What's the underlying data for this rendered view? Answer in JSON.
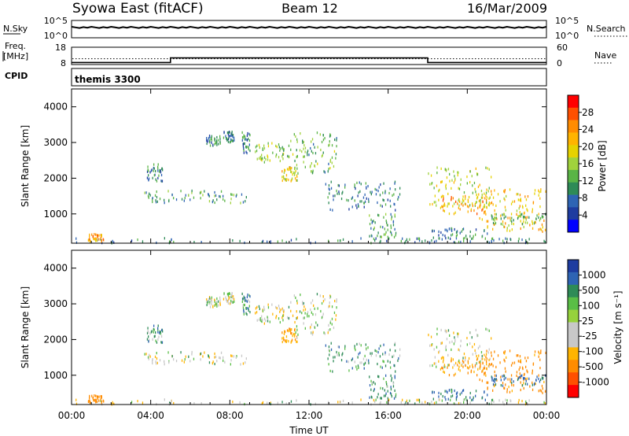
{
  "header": {
    "station": "Syowa East (fitACF)",
    "beam": "Beam 12",
    "date": "16/Mar/2009"
  },
  "noise_panel": {
    "left_label": "N.Sky",
    "right_label": "N.Search",
    "left_ticks": [
      "10^5",
      "10^0"
    ],
    "right_ticks": [
      "10^5",
      "10^0"
    ]
  },
  "freq_panel": {
    "left_label_top": "Freq.",
    "left_label_bottom": "[MHz]",
    "right_label": "Nave",
    "left_ticks": [
      "18",
      "8"
    ],
    "right_ticks": [
      "60",
      "0"
    ],
    "freq_steps": [
      {
        "t_start": 0,
        "t_end": 5.0,
        "freq_mhz": 9.2
      },
      {
        "t_start": 5.0,
        "t_end": 18.0,
        "freq_mhz": 11.8
      },
      {
        "t_start": 18.0,
        "t_end": 24.0,
        "freq_mhz": 9.2
      }
    ],
    "nave_level": 20
  },
  "cpid": {
    "label": "CPID",
    "value": "themis 3300"
  },
  "power_panel": {
    "ylabel": "Slant Range [km]",
    "y_ticks": [
      "4000",
      "3000",
      "2000",
      "1000"
    ],
    "colorbar_label": "Power [dB]",
    "colorbar_ticks": [
      "28",
      "24",
      "20",
      "16",
      "12",
      "8",
      "4"
    ],
    "colorbar_colors": [
      "#ff0000",
      "#ff5000",
      "#ff8c00",
      "#ffb400",
      "#e6d200",
      "#a0d23c",
      "#5ab446",
      "#2e8b57",
      "#2e64b4",
      "#1e3ca0",
      "#0000ff"
    ]
  },
  "velocity_panel": {
    "ylabel": "Slant Range [km]",
    "y_ticks": [
      "4000",
      "3000",
      "2000",
      "1000"
    ],
    "colorbar_label": "Velocity [m s⁻¹]",
    "colorbar_ticks": [
      "1000",
      "500",
      "100",
      "25",
      "-25",
      "-100",
      "-500",
      "-1000"
    ],
    "colorbar_colors": [
      "#1e3ca0",
      "#2e64b4",
      "#2e8b57",
      "#5abe46",
      "#96d23c",
      "#c8c8c8",
      "#c8c8c8",
      "#ffb400",
      "#ff8c00",
      "#ff5000",
      "#ff0000"
    ]
  },
  "xaxis": {
    "label": "Time UT",
    "ticks": [
      "00:00",
      "04:00",
      "08:00",
      "12:00",
      "16:00",
      "20:00",
      "00:00"
    ]
  },
  "chart_data": {
    "type": "heatmap",
    "x_unit": "hours UT",
    "x_range": [
      0,
      24
    ],
    "y_range_km": [
      180,
      4500
    ],
    "echo_regions": [
      {
        "t_start": 0.2,
        "t_end": 24.0,
        "r_start": 180,
        "r_end": 320,
        "power_db": 8,
        "velocity": 0
      },
      {
        "t_start": 0.8,
        "t_end": 1.6,
        "r_start": 220,
        "r_end": 450,
        "power_db": 22,
        "velocity": -300
      },
      {
        "t_start": 3.6,
        "t_end": 8.9,
        "r_start": 1300,
        "r_end": 1650,
        "power_db": 10,
        "velocity": 0
      },
      {
        "t_start": 3.8,
        "t_end": 4.6,
        "r_start": 1900,
        "r_end": 2400,
        "power_db": 8,
        "velocity": 60
      },
      {
        "t_start": 6.8,
        "t_end": 7.5,
        "r_start": 2900,
        "r_end": 3200,
        "power_db": 8,
        "velocity": 0
      },
      {
        "t_start": 7.6,
        "t_end": 8.2,
        "r_start": 3000,
        "r_end": 3300,
        "power_db": 8,
        "velocity": 0
      },
      {
        "t_start": 8.6,
        "t_end": 9.0,
        "r_start": 2700,
        "r_end": 3300,
        "power_db": 8,
        "velocity": 60
      },
      {
        "t_start": 9.2,
        "t_end": 11.0,
        "r_start": 2400,
        "r_end": 3000,
        "power_db": 14,
        "velocity": 0
      },
      {
        "t_start": 11.0,
        "t_end": 13.4,
        "r_start": 2100,
        "r_end": 3300,
        "power_db": 12,
        "velocity": 0
      },
      {
        "t_start": 10.6,
        "t_end": 11.4,
        "r_start": 1900,
        "r_end": 2300,
        "power_db": 18,
        "velocity": -80
      },
      {
        "t_start": 12.8,
        "t_end": 16.6,
        "r_start": 1100,
        "r_end": 1900,
        "power_db": 8,
        "velocity": 60
      },
      {
        "t_start": 15.0,
        "t_end": 16.4,
        "r_start": 350,
        "r_end": 1000,
        "power_db": 10,
        "velocity": 80
      },
      {
        "t_start": 18.0,
        "t_end": 21.2,
        "r_start": 1200,
        "r_end": 2300,
        "power_db": 16,
        "velocity": 0
      },
      {
        "t_start": 18.6,
        "t_end": 21.0,
        "r_start": 1000,
        "r_end": 1500,
        "power_db": 22,
        "velocity": -100
      },
      {
        "t_start": 20.6,
        "t_end": 24.0,
        "r_start": 500,
        "r_end": 1700,
        "power_db": 20,
        "velocity": -150
      },
      {
        "t_start": 18.2,
        "t_end": 21.0,
        "r_start": 300,
        "r_end": 600,
        "power_db": 8,
        "velocity": 100
      },
      {
        "t_start": 21.2,
        "t_end": 24.0,
        "r_start": 700,
        "r_end": 1000,
        "power_db": 12,
        "velocity": 120
      }
    ]
  }
}
